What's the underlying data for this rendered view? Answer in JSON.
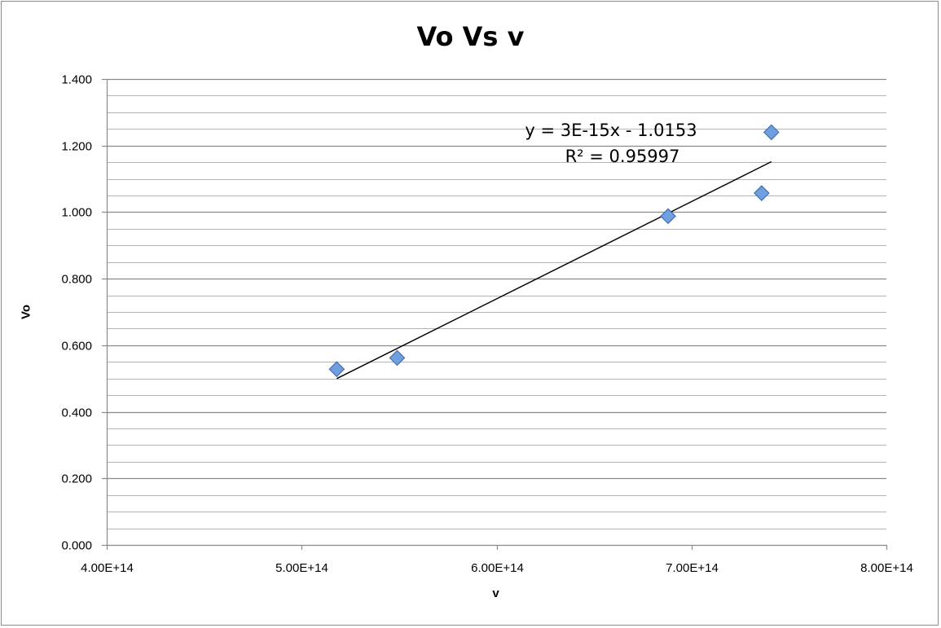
{
  "chart_data": {
    "type": "scatter",
    "title": "Vo Vs v",
    "xlabel": "v",
    "ylabel": "Vo",
    "xlim": [
      400000000000000.0,
      800000000000000.0
    ],
    "ylim": [
      0.0,
      1.4
    ],
    "x_ticks": [
      "4.00E+14",
      "5.00E+14",
      "6.00E+14",
      "7.00E+14",
      "8.00E+14"
    ],
    "y_ticks": [
      "0.000",
      "0.200",
      "0.400",
      "0.600",
      "0.800",
      "1.000",
      "1.200",
      "1.400"
    ],
    "grid": true,
    "marker_color": "#6f9fdf",
    "series": [
      {
        "points": [
          {
            "x": 518000000000000.0,
            "y": 0.528
          },
          {
            "x": 549000000000000.0,
            "y": 0.562
          },
          {
            "x": 688000000000000.0,
            "y": 0.988
          },
          {
            "x": 736000000000000.0,
            "y": 1.057
          },
          {
            "x": 741000000000000.0,
            "y": 1.24
          }
        ]
      }
    ],
    "trendline": {
      "x_start": 518000000000000.0,
      "x_end": 741000000000000.0,
      "equation": "y = 3E-15x - 1.0153",
      "r_squared": "R² = 0.95997"
    }
  }
}
